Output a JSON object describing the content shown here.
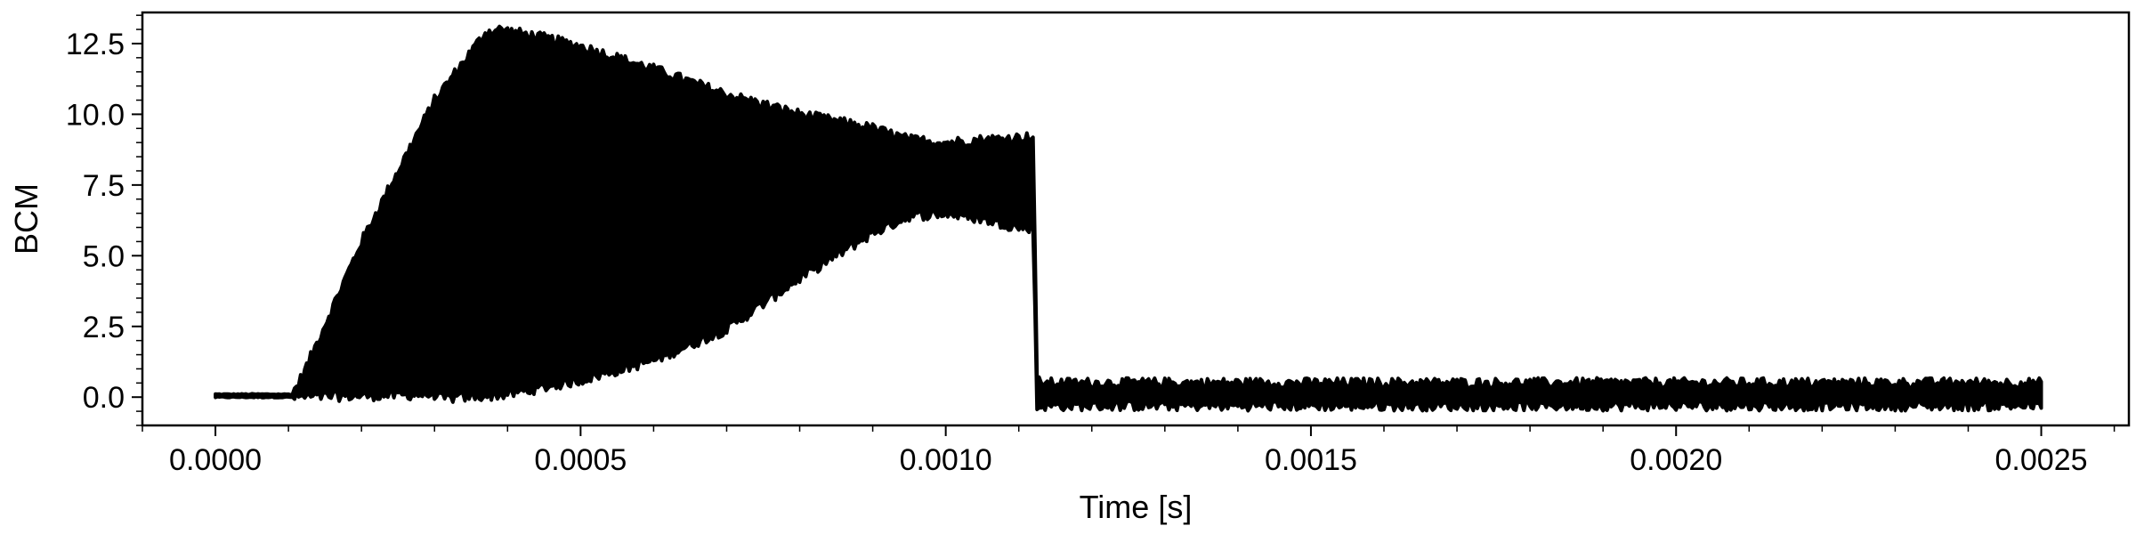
{
  "chart_data": {
    "type": "line",
    "title": "",
    "xlabel": "Time [s]",
    "ylabel": "BCM",
    "xlim": [
      -0.0001,
      0.00262
    ],
    "ylim": [
      -1.0,
      13.6
    ],
    "grid": false,
    "series_color": "#000000",
    "x_ticks": [
      0.0,
      0.0005,
      0.001,
      0.0015,
      0.002,
      0.0025
    ],
    "x_tick_labels": [
      "0.0000",
      "0.0005",
      "0.0010",
      "0.0015",
      "0.0020",
      "0.0025"
    ],
    "y_ticks": [
      0.0,
      2.5,
      5.0,
      7.5,
      10.0,
      12.5
    ],
    "y_tick_labels": [
      "0.0",
      "2.5",
      "5.0",
      "7.5",
      "10.0",
      "12.5"
    ],
    "series": [
      {
        "upper_envelope": {
          "x": [
            0.0,
            0.000105,
            0.00012,
            0.0002,
            0.0003,
            0.00037,
            0.00039,
            0.00045,
            0.0005,
            0.00055,
            0.0006,
            0.0007,
            0.0008,
            0.0009,
            0.00095,
            0.001,
            0.00105,
            0.00112,
            0.001125,
            0.00113,
            0.0025
          ],
          "y": [
            0.1,
            0.1,
            0.8,
            5.5,
            10.5,
            12.9,
            13.0,
            12.7,
            12.4,
            12.0,
            11.6,
            10.7,
            10.0,
            9.5,
            9.1,
            9.0,
            9.1,
            9.2,
            0.6,
            0.5,
            0.5
          ]
        },
        "lower_envelope": {
          "x": [
            0.0,
            0.000105,
            0.0002,
            0.0003,
            0.00031,
            0.0004,
            0.0005,
            0.0006,
            0.0007,
            0.00075,
            0.0008,
            0.00085,
            0.0009,
            0.00095,
            0.001,
            0.00105,
            0.0011,
            0.00112,
            0.001125,
            0.00113,
            0.0025
          ],
          "y": [
            0.0,
            0.0,
            0.05,
            0.1,
            -0.05,
            0.1,
            0.6,
            1.3,
            2.4,
            3.3,
            4.2,
            5.0,
            5.8,
            6.4,
            6.5,
            6.3,
            6.0,
            6.0,
            -0.4,
            -0.3,
            -0.3
          ]
        }
      }
    ]
  }
}
